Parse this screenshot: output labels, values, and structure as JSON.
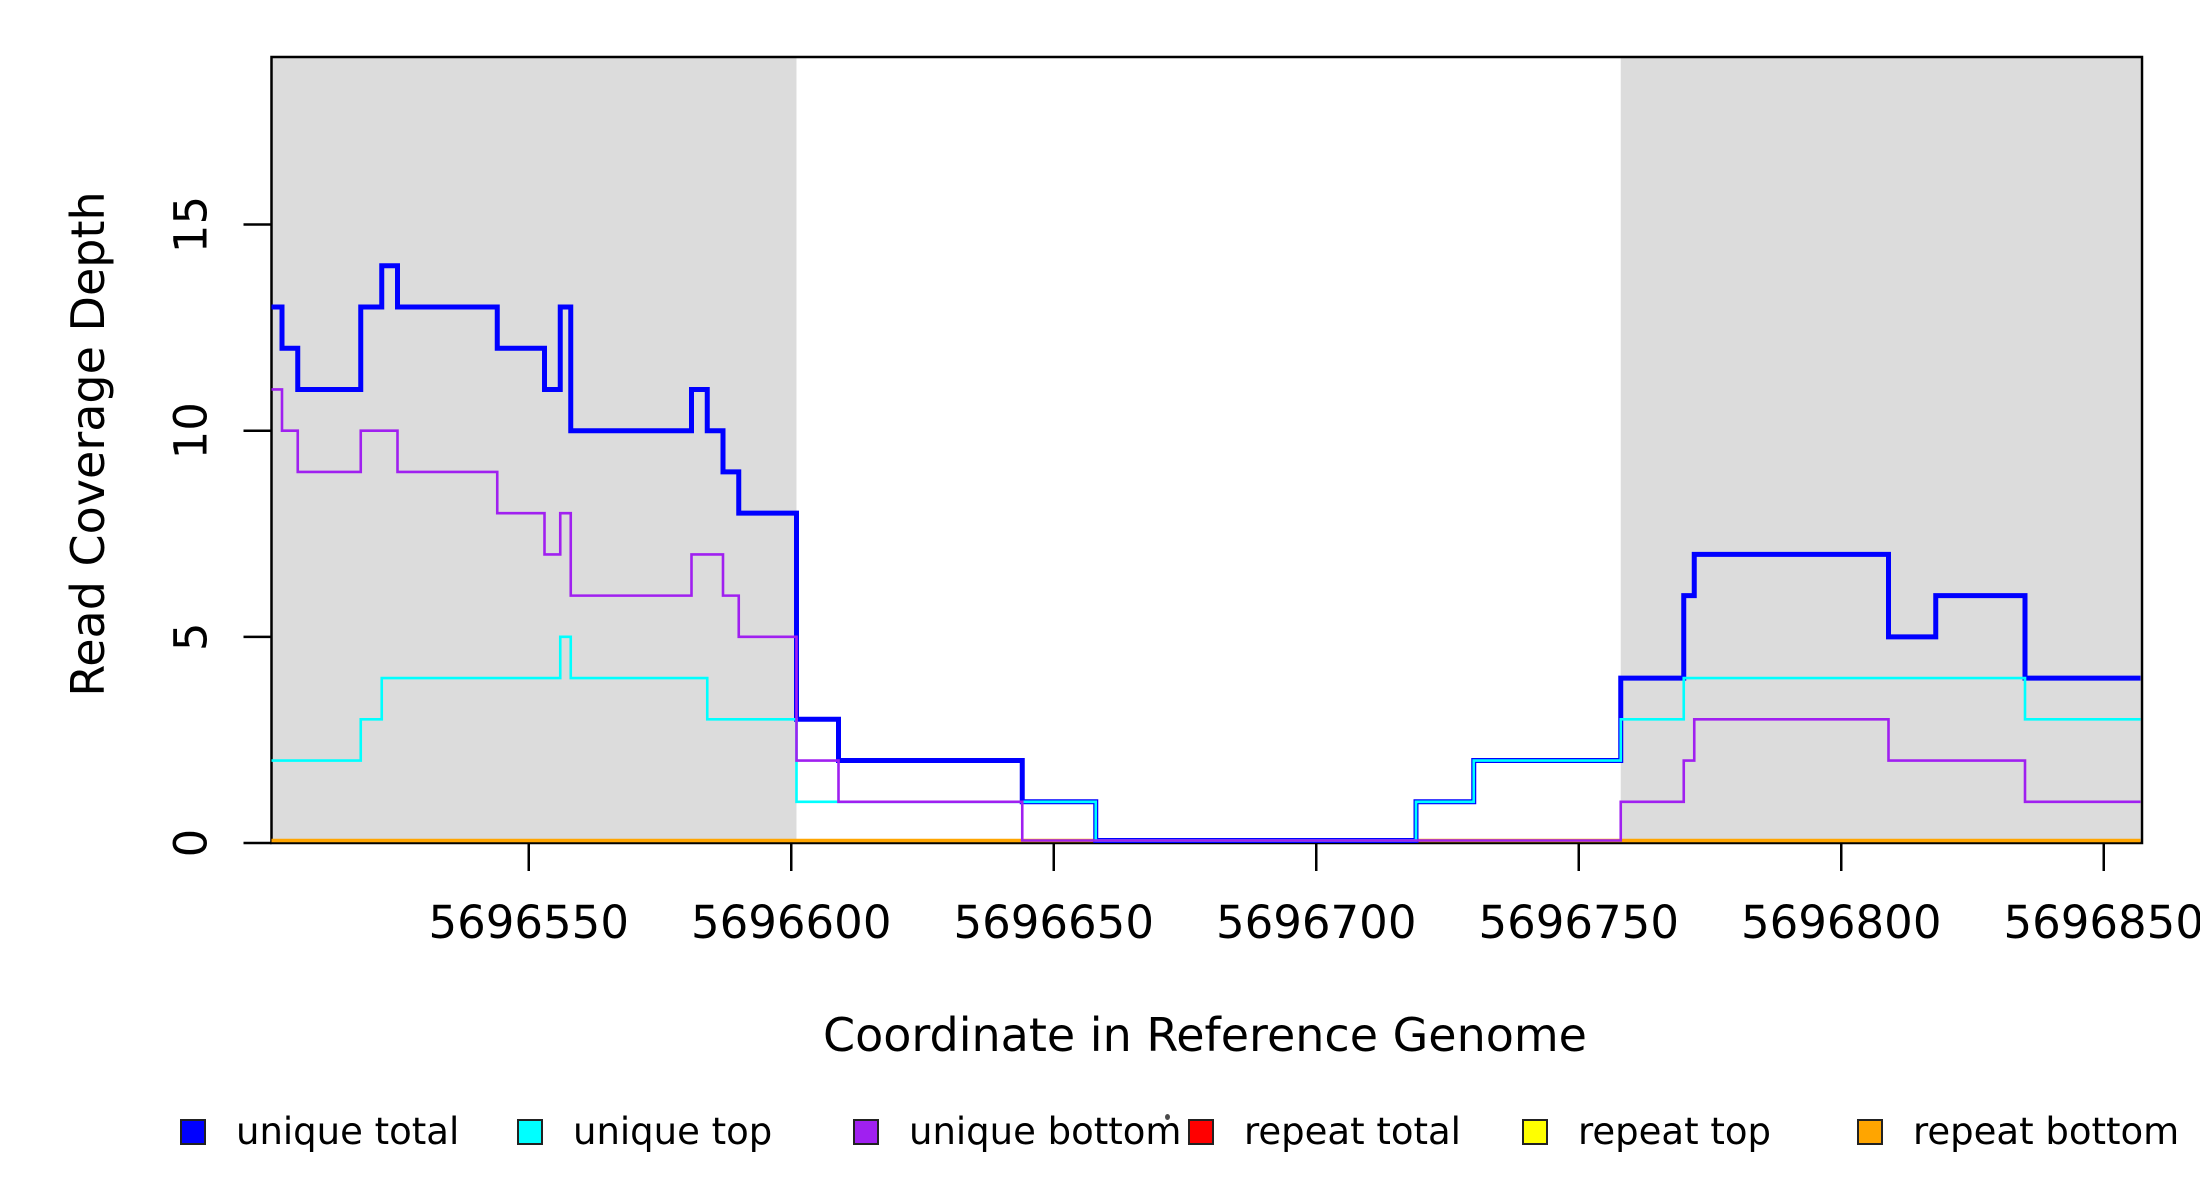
{
  "figure": {
    "x_axis_title": "Coordinate in Reference Genome",
    "y_axis_title": "Read Coverage Depth"
  },
  "chart_data": {
    "type": "line",
    "subtype": "step",
    "title": "",
    "xlabel": "Coordinate in Reference Genome",
    "ylabel": "Read Coverage Depth",
    "xlim": [
      5696501,
      5696857
    ],
    "ylim": [
      0,
      19
    ],
    "x_ticks": [
      5696550,
      5696600,
      5696650,
      5696700,
      5696750,
      5696800,
      5696850
    ],
    "y_ticks": [
      0,
      5,
      10,
      15
    ],
    "grid": false,
    "legend_position": "bottom",
    "background_color": "#ffffff",
    "shade_color": "#dcdcdc",
    "shaded_regions": [
      {
        "x_start": 5696501,
        "x_end": 5696601
      },
      {
        "x_start": 5696758,
        "x_end": 5696857
      }
    ],
    "draw_order": [
      "repeat total",
      "repeat top",
      "repeat bottom",
      "unique total",
      "unique top",
      "unique bottom"
    ],
    "series": [
      {
        "name": "unique total",
        "color": "#0000ff",
        "line_width": 5,
        "steps": [
          [
            5696501,
            13
          ],
          [
            5696503,
            12
          ],
          [
            5696506,
            11
          ],
          [
            5696518,
            13
          ],
          [
            5696522,
            14
          ],
          [
            5696525,
            13
          ],
          [
            5696544,
            12
          ],
          [
            5696553,
            11
          ],
          [
            5696556,
            13
          ],
          [
            5696558,
            10
          ],
          [
            5696581,
            11
          ],
          [
            5696584,
            10
          ],
          [
            5696587,
            9
          ],
          [
            5696590,
            8
          ],
          [
            5696601,
            3
          ],
          [
            5696609,
            2
          ],
          [
            5696644,
            1
          ],
          [
            5696658,
            0
          ],
          [
            5696719,
            1
          ],
          [
            5696730,
            2
          ],
          [
            5696758,
            4
          ],
          [
            5696770,
            6
          ],
          [
            5696772,
            7
          ],
          [
            5696809,
            5
          ],
          [
            5696818,
            6
          ],
          [
            5696835,
            4
          ]
        ]
      },
      {
        "name": "unique top",
        "color": "#00ffff",
        "line_width": 2.6,
        "steps": [
          [
            5696501,
            2
          ],
          [
            5696518,
            3
          ],
          [
            5696522,
            4
          ],
          [
            5696556,
            5
          ],
          [
            5696558,
            4
          ],
          [
            5696584,
            3
          ],
          [
            5696601,
            1
          ],
          [
            5696658,
            0
          ],
          [
            5696719,
            1
          ],
          [
            5696730,
            2
          ],
          [
            5696758,
            3
          ],
          [
            5696770,
            4
          ],
          [
            5696835,
            3
          ]
        ]
      },
      {
        "name": "unique bottom",
        "color": "#a020f0",
        "line_width": 2.6,
        "steps": [
          [
            5696501,
            11
          ],
          [
            5696503,
            10
          ],
          [
            5696506,
            9
          ],
          [
            5696518,
            10
          ],
          [
            5696525,
            9
          ],
          [
            5696544,
            8
          ],
          [
            5696553,
            7
          ],
          [
            5696556,
            8
          ],
          [
            5696558,
            6
          ],
          [
            5696581,
            7
          ],
          [
            5696587,
            6
          ],
          [
            5696590,
            5
          ],
          [
            5696601,
            2
          ],
          [
            5696609,
            1
          ],
          [
            5696644,
            0
          ],
          [
            5696758,
            1
          ],
          [
            5696770,
            2
          ],
          [
            5696772,
            3
          ],
          [
            5696809,
            2
          ],
          [
            5696835,
            1
          ]
        ]
      },
      {
        "name": "repeat total",
        "color": "#ff0000",
        "line_width": 2.6,
        "steps": [
          [
            5696501,
            0
          ]
        ]
      },
      {
        "name": "repeat top",
        "color": "#ffff00",
        "line_width": 2.6,
        "steps": [
          [
            5696501,
            0
          ]
        ]
      },
      {
        "name": "repeat bottom",
        "color": "#ffa500",
        "line_width": 3.6,
        "steps": [
          [
            5696501,
            0
          ]
        ]
      }
    ]
  },
  "legend": {
    "items": [
      {
        "label": "unique total",
        "color": "#0000ff"
      },
      {
        "label": "unique top",
        "color": "#00ffff"
      },
      {
        "label": "unique bottom",
        "color": "#a020f0"
      },
      {
        "label": "repeat total",
        "color": "#ff0000"
      },
      {
        "label": "repeat top",
        "color": "#ffff00"
      },
      {
        "label": "repeat bottom",
        "color": "#ffa500"
      }
    ]
  }
}
